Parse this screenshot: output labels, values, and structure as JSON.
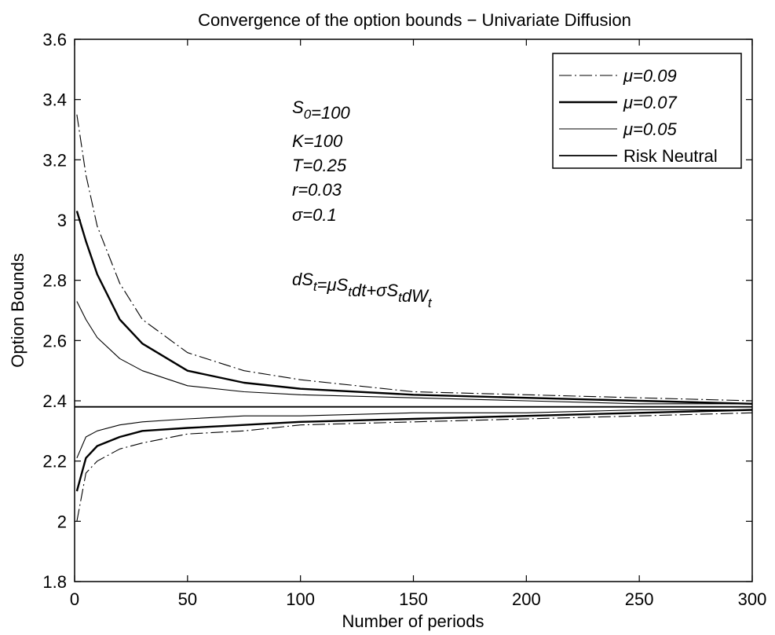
{
  "chart_data": {
    "type": "line",
    "title": "Convergence of the option bounds − Univariate Diffusion",
    "xlabel": "Number of periods",
    "ylabel": "Option Bounds",
    "xlim": [
      0,
      300
    ],
    "ylim": [
      1.8,
      3.6
    ],
    "xticks": [
      "0",
      "50",
      "100",
      "150",
      "200",
      "250",
      "300"
    ],
    "yticks": [
      "1.8",
      "2",
      "2.2",
      "2.4",
      "2.6",
      "2.8",
      "3",
      "3.2",
      "3.4",
      "3.6"
    ],
    "grid": false,
    "legend_position": "top-right",
    "series": [
      {
        "name": "μ=0.09",
        "line_style": "dashdot",
        "upper": {
          "x": [
            1,
            5,
            10,
            20,
            30,
            50,
            75,
            100,
            150,
            200,
            250,
            300
          ],
          "y": [
            3.35,
            3.15,
            2.98,
            2.79,
            2.67,
            2.56,
            2.5,
            2.47,
            2.43,
            2.42,
            2.41,
            2.4
          ]
        },
        "lower": {
          "x": [
            1,
            5,
            10,
            20,
            30,
            50,
            75,
            100,
            150,
            200,
            250,
            300
          ],
          "y": [
            2.0,
            2.16,
            2.2,
            2.24,
            2.26,
            2.29,
            2.3,
            2.32,
            2.33,
            2.34,
            2.35,
            2.36
          ]
        }
      },
      {
        "name": "μ=0.07",
        "line_style": "solid-thick",
        "upper": {
          "x": [
            1,
            5,
            10,
            20,
            30,
            50,
            75,
            100,
            150,
            200,
            250,
            300
          ],
          "y": [
            3.03,
            2.93,
            2.82,
            2.67,
            2.59,
            2.5,
            2.46,
            2.44,
            2.42,
            2.41,
            2.4,
            2.39
          ]
        },
        "lower": {
          "x": [
            1,
            5,
            10,
            20,
            30,
            50,
            75,
            100,
            150,
            200,
            250,
            300
          ],
          "y": [
            2.1,
            2.21,
            2.25,
            2.28,
            2.3,
            2.31,
            2.32,
            2.33,
            2.34,
            2.35,
            2.36,
            2.37
          ]
        }
      },
      {
        "name": "μ=0.05",
        "line_style": "solid-thin",
        "upper": {
          "x": [
            1,
            5,
            10,
            20,
            30,
            50,
            75,
            100,
            150,
            200,
            250,
            300
          ],
          "y": [
            2.73,
            2.67,
            2.61,
            2.54,
            2.5,
            2.45,
            2.43,
            2.42,
            2.41,
            2.4,
            2.39,
            2.39
          ]
        },
        "lower": {
          "x": [
            1,
            5,
            10,
            20,
            30,
            50,
            75,
            100,
            150,
            200,
            250,
            300
          ],
          "y": [
            2.21,
            2.28,
            2.3,
            2.32,
            2.33,
            2.34,
            2.35,
            2.35,
            2.36,
            2.36,
            2.37,
            2.37
          ]
        }
      },
      {
        "name": "Risk Neutral",
        "line_style": "solid",
        "x": [
          0,
          300
        ],
        "y": [
          2.38,
          2.38
        ]
      }
    ],
    "annotations": {
      "s0": {
        "main": "S",
        "sub": "0",
        "rest": "=100"
      },
      "k": "K=100",
      "t": "T=0.25",
      "r": "r=0.03",
      "sigma": "σ=0.1",
      "sde": [
        {
          "t": "dS"
        },
        {
          "t": "t",
          "sub": true
        },
        {
          "t": "=μS"
        },
        {
          "t": "t",
          "sub": true
        },
        {
          "t": "dt+σS"
        },
        {
          "t": "t",
          "sub": true
        },
        {
          "t": "dW"
        },
        {
          "t": "t",
          "sub": true
        }
      ]
    }
  }
}
